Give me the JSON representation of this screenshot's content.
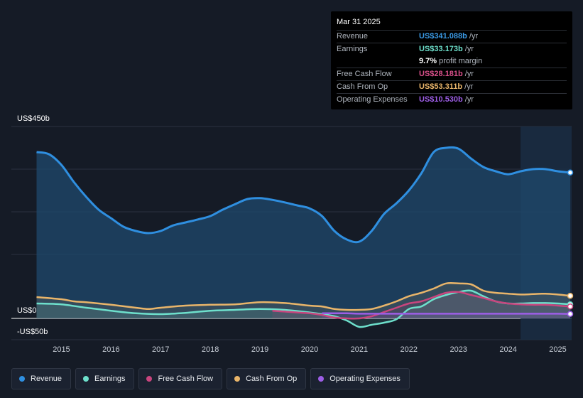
{
  "tooltip": {
    "date": "Mar 31 2025",
    "rows": [
      {
        "label": "Revenue",
        "value": "US$341.088b",
        "unit": "/yr",
        "color": "#3b9ae6"
      },
      {
        "label": "Earnings",
        "value": "US$33.173b",
        "unit": "/yr",
        "color": "#6ee0cc"
      },
      {
        "label": "",
        "value": "9.7%",
        "unit": "profit margin",
        "color": "#ffffff"
      },
      {
        "label": "Free Cash Flow",
        "value": "US$28.181b",
        "unit": "/yr",
        "color": "#d9508a"
      },
      {
        "label": "Cash From Op",
        "value": "US$53.311b",
        "unit": "/yr",
        "color": "#e9b56a"
      },
      {
        "label": "Operating Expenses",
        "value": "US$10.530b",
        "unit": "/yr",
        "color": "#9d5ee6"
      }
    ]
  },
  "legend": [
    {
      "label": "Revenue",
      "color": "#2f8fe0"
    },
    {
      "label": "Earnings",
      "color": "#6ee0cc"
    },
    {
      "label": "Free Cash Flow",
      "color": "#c9457e"
    },
    {
      "label": "Cash From Op",
      "color": "#e9b56a"
    },
    {
      "label": "Operating Expenses",
      "color": "#9d5ee6"
    }
  ],
  "chart_data": {
    "type": "area",
    "title": "",
    "xlabel": "",
    "ylabel": "",
    "y_top_label": "US$450b",
    "y_zero_label": "US$0",
    "y_bottom_label": "-US$50b",
    "ylim": [
      -50,
      450
    ],
    "xlim": [
      2014.45,
      2025.25
    ],
    "x_ticks": [
      "2015",
      "2016",
      "2017",
      "2018",
      "2019",
      "2020",
      "2021",
      "2022",
      "2023",
      "2024",
      "2025"
    ],
    "x_tick_values": [
      2015,
      2016,
      2017,
      2018,
      2019,
      2020,
      2021,
      2022,
      2023,
      2024,
      2025
    ],
    "highlight_from": 2024.25,
    "series": [
      {
        "name": "Revenue",
        "color": "#2f8fe0",
        "fill": true,
        "x": [
          2014.5,
          2014.75,
          2015.0,
          2015.25,
          2015.5,
          2015.75,
          2016.0,
          2016.25,
          2016.5,
          2016.75,
          2017.0,
          2017.25,
          2017.5,
          2017.75,
          2018.0,
          2018.25,
          2018.5,
          2018.75,
          2019.0,
          2019.25,
          2019.5,
          2019.75,
          2020.0,
          2020.25,
          2020.5,
          2020.75,
          2021.0,
          2021.25,
          2021.5,
          2021.75,
          2022.0,
          2022.25,
          2022.5,
          2022.75,
          2023.0,
          2023.25,
          2023.5,
          2023.75,
          2024.0,
          2024.25,
          2024.5,
          2024.75,
          2025.0,
          2025.25
        ],
        "values": [
          390,
          385,
          360,
          320,
          285,
          255,
          235,
          215,
          205,
          200,
          205,
          218,
          225,
          232,
          240,
          255,
          268,
          280,
          282,
          278,
          272,
          265,
          258,
          240,
          205,
          185,
          180,
          205,
          245,
          270,
          300,
          340,
          390,
          400,
          398,
          375,
          355,
          345,
          338,
          345,
          350,
          350,
          345,
          342
        ]
      },
      {
        "name": "Earnings",
        "color": "#6ee0cc",
        "fill": false,
        "x": [
          2014.5,
          2015.0,
          2015.5,
          2016.0,
          2016.5,
          2017.0,
          2017.5,
          2018.0,
          2018.5,
          2019.0,
          2019.5,
          2020.0,
          2020.25,
          2020.5,
          2020.75,
          2021.0,
          2021.25,
          2021.5,
          2021.75,
          2022.0,
          2022.25,
          2022.5,
          2022.75,
          2023.0,
          2023.25,
          2023.5,
          2023.75,
          2024.0,
          2024.25,
          2024.5,
          2024.75,
          2025.0,
          2025.25
        ],
        "values": [
          35,
          33,
          25,
          18,
          12,
          10,
          13,
          18,
          20,
          22,
          20,
          14,
          10,
          5,
          -5,
          -20,
          -15,
          -10,
          -2,
          22,
          28,
          45,
          55,
          62,
          65,
          52,
          40,
          35,
          35,
          36,
          36,
          35,
          33
        ]
      },
      {
        "name": "Free Cash Flow",
        "color": "#c9457e",
        "fill": false,
        "x": [
          2019.25,
          2019.5,
          2019.75,
          2020.0,
          2020.25,
          2020.5,
          2020.75,
          2021.0,
          2021.25,
          2021.5,
          2021.75,
          2022.0,
          2022.25,
          2022.5,
          2022.75,
          2023.0,
          2023.25,
          2023.5,
          2023.75,
          2024.0,
          2024.25,
          2024.5,
          2024.75,
          2025.0,
          2025.25
        ],
        "values": [
          18,
          16,
          14,
          12,
          8,
          2,
          0,
          0,
          5,
          15,
          25,
          35,
          40,
          50,
          60,
          62,
          55,
          48,
          40,
          35,
          33,
          32,
          32,
          30,
          28
        ]
      },
      {
        "name": "Cash From Op",
        "color": "#e9b56a",
        "fill": false,
        "x": [
          2014.5,
          2015.0,
          2015.25,
          2015.5,
          2016.0,
          2016.5,
          2016.75,
          2017.0,
          2017.5,
          2018.0,
          2018.5,
          2019.0,
          2019.5,
          2020.0,
          2020.25,
          2020.5,
          2020.75,
          2021.0,
          2021.25,
          2021.5,
          2021.75,
          2022.0,
          2022.25,
          2022.5,
          2022.75,
          2023.0,
          2023.25,
          2023.5,
          2023.75,
          2024.0,
          2024.25,
          2024.5,
          2024.75,
          2025.0,
          2025.25
        ],
        "values": [
          50,
          45,
          40,
          38,
          32,
          25,
          22,
          25,
          30,
          32,
          33,
          38,
          36,
          30,
          28,
          22,
          20,
          20,
          22,
          30,
          40,
          52,
          60,
          70,
          82,
          82,
          80,
          65,
          60,
          58,
          56,
          57,
          58,
          56,
          53
        ]
      },
      {
        "name": "Operating Expenses",
        "color": "#9d5ee6",
        "fill": false,
        "x": [
          2020.25,
          2020.5,
          2020.75,
          2021.0,
          2021.5,
          2022.0,
          2022.5,
          2023.0,
          2023.5,
          2024.0,
          2024.5,
          2025.0,
          2025.25
        ],
        "values": [
          12,
          12,
          12,
          11,
          11,
          11,
          11,
          11,
          11,
          11,
          11,
          11,
          10.5
        ]
      }
    ]
  }
}
